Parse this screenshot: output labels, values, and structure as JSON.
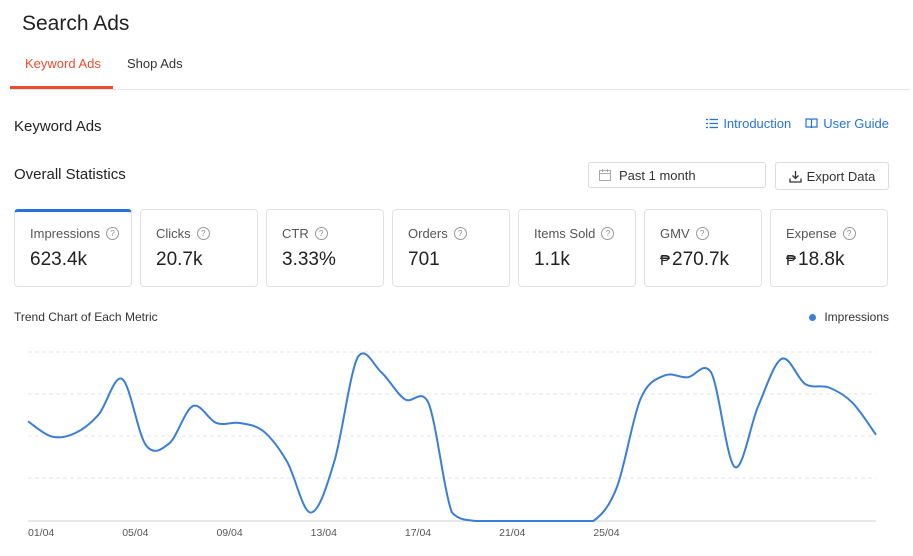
{
  "page": {
    "title": "Search Ads"
  },
  "tabs": [
    {
      "label": "Keyword Ads",
      "active": true
    },
    {
      "label": "Shop Ads",
      "active": false
    }
  ],
  "section": {
    "title": "Keyword Ads"
  },
  "links": {
    "introduction": "Introduction",
    "user_guide": "User Guide"
  },
  "overall": {
    "title": "Overall Statistics"
  },
  "date_picker": {
    "value": "Past 1 month",
    "icon": "calendar-icon"
  },
  "export": {
    "label": "Export Data",
    "icon": "download-icon"
  },
  "metrics": [
    {
      "label": "Impressions",
      "value": "623.4k",
      "active": true
    },
    {
      "label": "Clicks",
      "value": "20.7k"
    },
    {
      "label": "CTR",
      "value": "3.33%"
    },
    {
      "label": "Orders",
      "value": "701"
    },
    {
      "label": "Items Sold",
      "value": "1.1k"
    },
    {
      "label": "GMV",
      "currency": "₱",
      "value": "270.7k"
    },
    {
      "label": "Expense",
      "currency": "₱",
      "value": "18.8k"
    }
  ],
  "colors": {
    "accent": "#ee4d2d",
    "link": "#2673dd",
    "series": "#3b7ed6"
  },
  "chart_data": {
    "type": "line",
    "title": "Trend Chart of Each Metric",
    "legend_position": "top-right",
    "grid": true,
    "x_tick_labels": [
      "01/04",
      "05/04",
      "09/04",
      "13/04",
      "17/04",
      "21/04",
      "25/04"
    ],
    "series": [
      {
        "name": "Impressions",
        "color": "#3b7ed6",
        "values": [
          0.59,
          0.5,
          0.52,
          0.63,
          0.84,
          0.45,
          0.46,
          0.68,
          0.58,
          0.58,
          0.53,
          0.35,
          0.05,
          0.35,
          0.97,
          0.88,
          0.72,
          0.7,
          0.05,
          0.0,
          0.0,
          0.0,
          0.0,
          0.0,
          0.0,
          0.2,
          0.72,
          0.86,
          0.85,
          0.88,
          0.32,
          0.68,
          0.96,
          0.81,
          0.79,
          0.7,
          0.51
        ]
      }
    ]
  }
}
